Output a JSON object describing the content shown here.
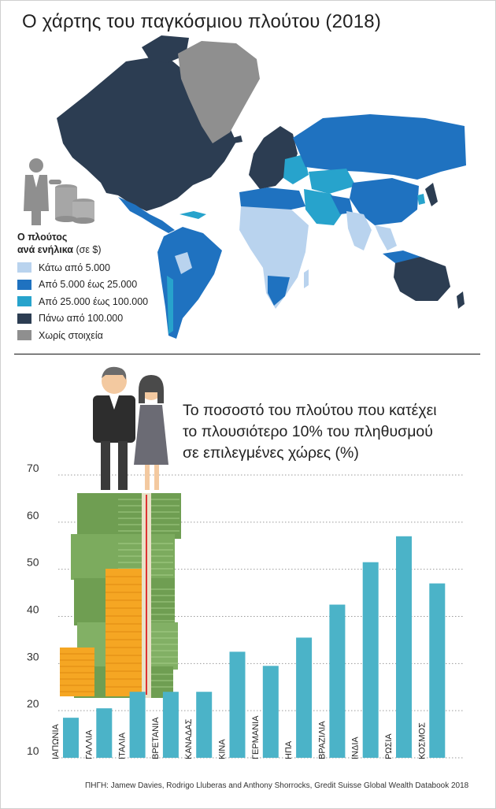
{
  "map": {
    "title": "Ο χάρτης του παγκόσμιου πλούτου (2018)",
    "legend_title_line1": "Ο πλούτος",
    "legend_title_line2": "ανά ενήλικα",
    "legend_unit": "(σε $)",
    "legend": [
      {
        "label": "Κάτω από 5.000",
        "color": "#b9d3ee"
      },
      {
        "label": "Από 5.000 έως 25.000",
        "color": "#1f72c0"
      },
      {
        "label": "Από 25.000 έως 100.000",
        "color": "#27a3cc"
      },
      {
        "label": "Πάνω από 100.000",
        "color": "#2c3d52"
      },
      {
        "label": "Χωρίς στοιχεία",
        "color": "#8f8f8f"
      }
    ]
  },
  "chart_title_lines": [
    "Το ποσοστό του πλούτου που κατέχει",
    "το πλουσιότερο 10% του πληθυσμού",
    "σε επιλεγμένες χώρες (%)"
  ],
  "source": "ΠΗΓΗ: Jamew Davies, Rodrigo Lluberas and Anthony Shorrocks, Gredit Suisse Global Wealth Databook 2018",
  "colors": {
    "bar": "#4bb3c8",
    "grid": "#9a9a9a"
  },
  "chart_data": {
    "type": "bar",
    "title": "Το ποσοστό του πλούτου που κατέχει το πλουσιότερο 10% του πληθυσμού σε επιλεγμένες χώρες (%)",
    "categories": [
      "ΙΑΠΩΝΙΑ",
      "ΓΑΛΛΙΑ",
      "ΙΤΑΛΙΑ",
      "ΒΡΕΤΑΝΙΑ",
      "ΚΑΝΑΔΑΣ",
      "ΚΙΝΑ",
      "ΓΕΡΜΑΝΙΑ",
      "ΗΠΑ",
      "ΒΡΑΖΙΛΙΑ",
      "ΙΝΔΙΑ",
      "ΡΩΣΙΑ",
      "ΚΟΣΜΟΣ"
    ],
    "values": [
      18.5,
      20.5,
      24,
      24,
      24,
      32.5,
      29.5,
      35.5,
      42.5,
      51.5,
      57,
      47
    ],
    "ylim": [
      10,
      70
    ],
    "yticks": [
      10,
      20,
      30,
      40,
      50,
      60,
      70
    ],
    "grid": true,
    "xlabel": "",
    "ylabel": ""
  }
}
